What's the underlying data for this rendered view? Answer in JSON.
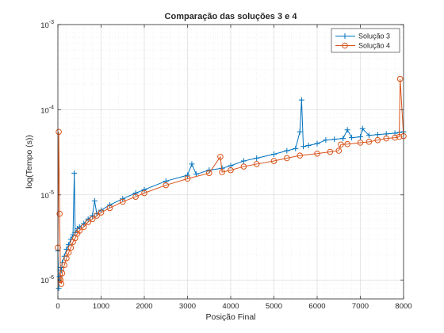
{
  "colors": {
    "series1": "#0072BD",
    "series2": "#D95319",
    "axis": "#262626",
    "grid": "#d6d6d6",
    "minor_grid": "#e6e6e6"
  },
  "chart_data": {
    "type": "line",
    "title": "Comparação das soluções 3 e 4",
    "xlabel": "Posição Final",
    "ylabel": "log(Tempo (s))",
    "xlim": [
      0,
      8000
    ],
    "ylim": [
      6e-07,
      0.001
    ],
    "yscale": "log",
    "grid": "on (major and minor)",
    "legend_position": "top-right",
    "x_ticks": [
      0,
      1000,
      2000,
      3000,
      4000,
      5000,
      6000,
      7000,
      8000
    ],
    "x_tick_labels": [
      "0",
      "1000",
      "2000",
      "3000",
      "4000",
      "5000",
      "6000",
      "7000",
      "8000"
    ],
    "y_ticks": [
      1e-06,
      1e-05,
      0.0001,
      0.001
    ],
    "y_tick_labels": [
      {
        "base": "10",
        "exp": "-6"
      },
      {
        "base": "10",
        "exp": "-5"
      },
      {
        "base": "10",
        "exp": "-4"
      },
      {
        "base": "10",
        "exp": "-3"
      }
    ],
    "series": [
      {
        "name": "Solução 3",
        "marker": "plus",
        "x": [
          0,
          20,
          40,
          60,
          80,
          100,
          150,
          200,
          250,
          300,
          350,
          380,
          400,
          450,
          500,
          600,
          700,
          800,
          850,
          900,
          1000,
          1200,
          1500,
          1800,
          2000,
          2500,
          3000,
          3100,
          3200,
          3500,
          3800,
          4000,
          4300,
          4600,
          5000,
          5300,
          5500,
          5600,
          5640,
          5680,
          5800,
          6000,
          6200,
          6400,
          6600,
          6700,
          6800,
          7000,
          7050,
          7200,
          7400,
          7600,
          7800,
          7900,
          8000
        ],
        "y": [
          2.2e-06,
          8e-07,
          1.1e-06,
          1.4e-06,
          1.3e-06,
          1.6e-06,
          1.9e-06,
          2.3e-06,
          2.6e-06,
          3e-06,
          3.4e-06,
          1.8e-05,
          3.6e-06,
          4e-06,
          4.2e-06,
          4.6e-06,
          5.2e-06,
          5.7e-06,
          8.5e-06,
          6e-06,
          6.6e-06,
          7.6e-06,
          9e-06,
          1.05e-05,
          1.15e-05,
          1.45e-05,
          1.7e-05,
          2.3e-05,
          1.75e-05,
          1.95e-05,
          2.05e-05,
          2.2e-05,
          2.5e-05,
          2.7e-05,
          3e-05,
          3.3e-05,
          3.5e-05,
          5.5e-05,
          0.00013,
          3.7e-05,
          3.8e-05,
          4e-05,
          4.4e-05,
          4.5e-05,
          4.6e-05,
          5.8e-05,
          4.7e-05,
          4.8e-05,
          6e-05,
          5e-05,
          5.1e-05,
          5.2e-05,
          5.3e-05,
          5.4e-05,
          5.5e-05
        ]
      },
      {
        "name": "Solução 4",
        "marker": "circle",
        "x": [
          0,
          20,
          40,
          60,
          80,
          100,
          150,
          200,
          250,
          300,
          350,
          400,
          450,
          500,
          600,
          700,
          800,
          900,
          1000,
          1200,
          1500,
          1800,
          2000,
          2500,
          3000,
          3500,
          3760,
          3800,
          4000,
          4300,
          4600,
          5000,
          5300,
          5600,
          6000,
          6300,
          6500,
          6550,
          6700,
          7000,
          7200,
          7400,
          7600,
          7800,
          7900,
          7920,
          8000
        ],
        "y": [
          2.4e-06,
          5.5e-05,
          6e-06,
          1e-06,
          9e-07,
          1.2e-06,
          1.5e-06,
          1.8e-06,
          2.1e-06,
          2.4e-06,
          2.8e-06,
          3.1e-06,
          3.5e-06,
          3.8e-06,
          4.2e-06,
          4.8e-06,
          5.2e-06,
          5.7e-06,
          6.2e-06,
          7e-06,
          8.3e-06,
          9.5e-06,
          1.05e-05,
          1.3e-05,
          1.55e-05,
          1.8e-05,
          2.8e-05,
          1.85e-05,
          1.95e-05,
          2.15e-05,
          2.3e-05,
          2.5e-05,
          2.7e-05,
          2.9e-05,
          3.05e-05,
          3.2e-05,
          3.3e-05,
          3.9e-05,
          3.95e-05,
          4.1e-05,
          4.2e-05,
          4.4e-05,
          4.6e-05,
          4.7e-05,
          4.8e-05,
          0.00023,
          4.9e-05
        ]
      }
    ]
  }
}
